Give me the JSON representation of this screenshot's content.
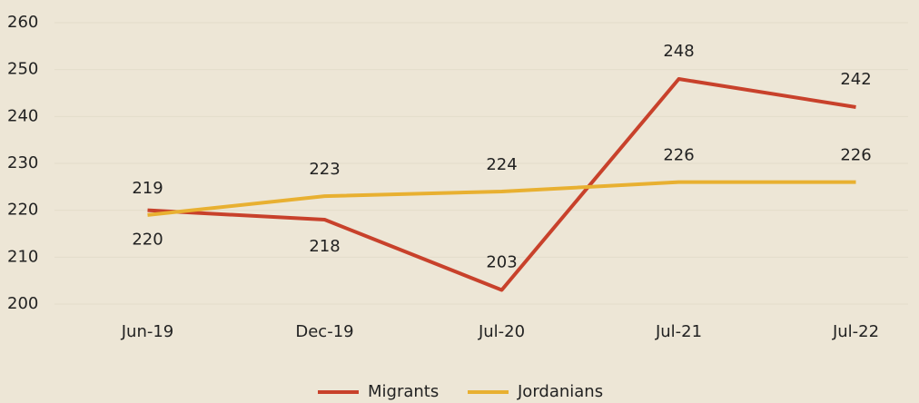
{
  "chart_data": {
    "type": "line",
    "categories": [
      "Jun-19",
      "Dec-19",
      "Jul-20",
      "Jul-21",
      "Jul-22"
    ],
    "series": [
      {
        "name": "Migrants",
        "color": "#c8412b",
        "values": [
          220,
          218,
          203,
          248,
          242
        ]
      },
      {
        "name": "Jordanians",
        "color": "#e8b031",
        "values": [
          219,
          223,
          224,
          226,
          226
        ]
      }
    ],
    "ylim": [
      200,
      260
    ],
    "yticks": [
      200,
      210,
      220,
      230,
      240,
      250,
      260
    ],
    "grid": true,
    "legend": "bottom"
  }
}
